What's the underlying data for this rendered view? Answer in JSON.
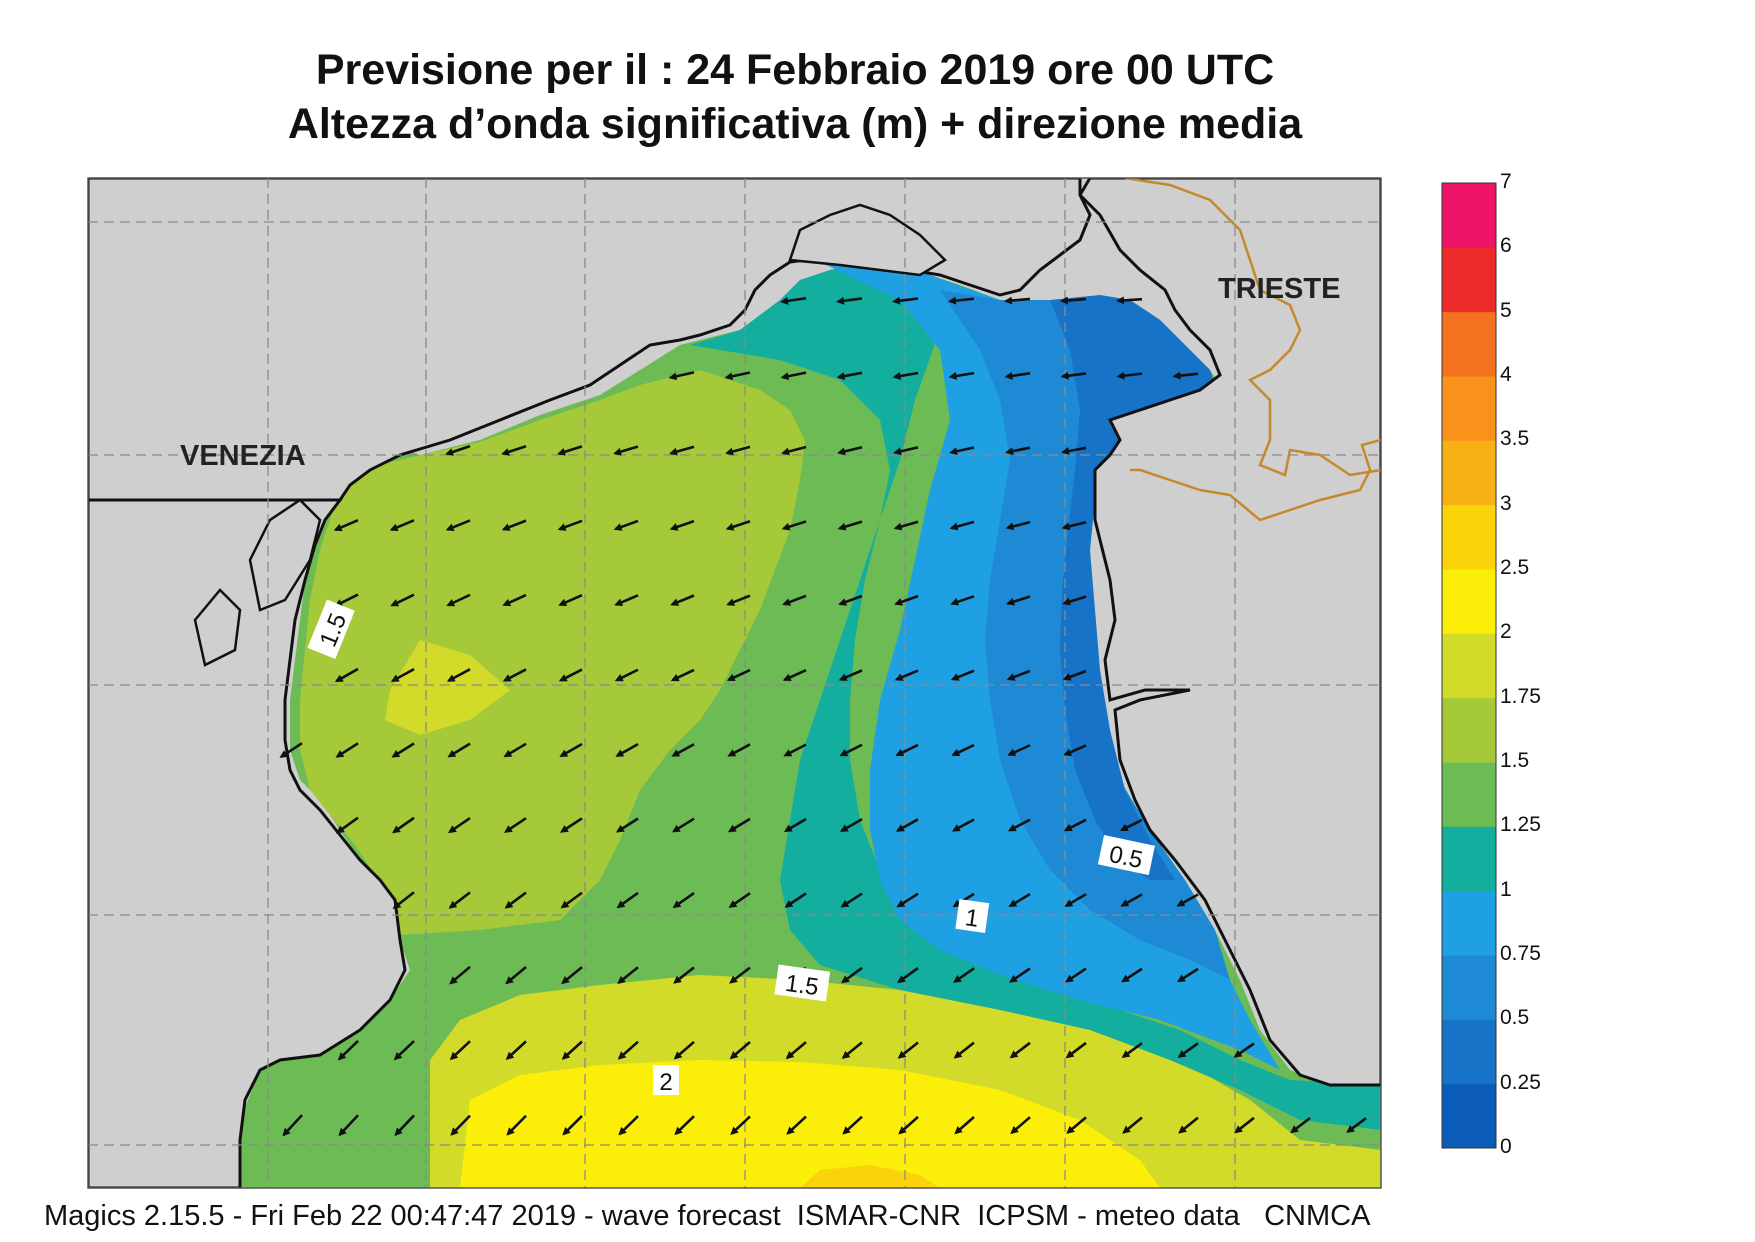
{
  "title": {
    "line1": "Previsione per il  :  24  Febbraio 2019   ore 00 UTC",
    "line2": "Altezza d’onda significativa (m) + direzione media"
  },
  "cities": {
    "venezia": "VENEZIA",
    "trieste": "TRIESTE"
  },
  "contour_labels": [
    "1.5",
    "0.5",
    "1",
    "1.5",
    "2"
  ],
  "legend": {
    "levels": [
      "0",
      "0.25",
      "0.5",
      "0.75",
      "1",
      "1.25",
      "1.5",
      "1.75",
      "2",
      "2.5",
      "3",
      "3.5",
      "4",
      "5",
      "6",
      "7"
    ],
    "colors": [
      "#0a5cb8",
      "#1673c8",
      "#1e8ad6",
      "#1fa0e2",
      "#13ae9e",
      "#6dbb55",
      "#a6c93a",
      "#d2da2a",
      "#fbef0a",
      "#fbd30a",
      "#f8b115",
      "#f8921b",
      "#f4721f",
      "#ec2a2a",
      "#ee1467"
    ]
  },
  "palette": {
    "land": "#cfcfcf",
    "coast": "#111111",
    "border": "#c48a2a",
    "grid": "#8a8a8a"
  },
  "footer": "Magics 2.15.5 - Fri Feb 22 00:47:47 2019 - wave forecast  ISMAR-CNR  ICPSM - meteo data   CNMCA"
}
